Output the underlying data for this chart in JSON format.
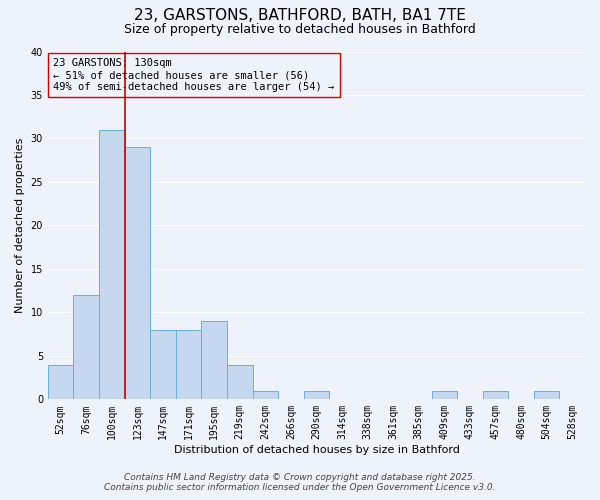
{
  "title": "23, GARSTONS, BATHFORD, BATH, BA1 7TE",
  "subtitle": "Size of property relative to detached houses in Bathford",
  "xlabel": "Distribution of detached houses by size in Bathford",
  "ylabel": "Number of detached properties",
  "bin_labels": [
    "52sqm",
    "76sqm",
    "100sqm",
    "123sqm",
    "147sqm",
    "171sqm",
    "195sqm",
    "219sqm",
    "242sqm",
    "266sqm",
    "290sqm",
    "314sqm",
    "338sqm",
    "361sqm",
    "385sqm",
    "409sqm",
    "433sqm",
    "457sqm",
    "480sqm",
    "504sqm",
    "528sqm"
  ],
  "bar_values": [
    4,
    12,
    31,
    29,
    8,
    8,
    9,
    4,
    1,
    0,
    1,
    0,
    0,
    0,
    0,
    1,
    0,
    1,
    0,
    1,
    0
  ],
  "bar_color": "#c5d8f0",
  "bar_edgecolor": "#6baed6",
  "vline_x_index": 2.5,
  "vline_color": "#cc0000",
  "ylim": [
    0,
    40
  ],
  "yticks": [
    0,
    5,
    10,
    15,
    20,
    25,
    30,
    35,
    40
  ],
  "annotation_title": "23 GARSTONS: 130sqm",
  "annotation_line1": "← 51% of detached houses are smaller (56)",
  "annotation_line2": "49% of semi-detached houses are larger (54) →",
  "annotation_box_edgecolor": "#cc0000",
  "footer_line1": "Contains HM Land Registry data © Crown copyright and database right 2025.",
  "footer_line2": "Contains public sector information licensed under the Open Government Licence v3.0.",
  "background_color": "#eef2fb",
  "grid_color": "#ffffff",
  "title_fontsize": 11,
  "subtitle_fontsize": 9,
  "axis_label_fontsize": 8,
  "tick_fontsize": 7,
  "annotation_fontsize": 7.5,
  "footer_fontsize": 6.5
}
